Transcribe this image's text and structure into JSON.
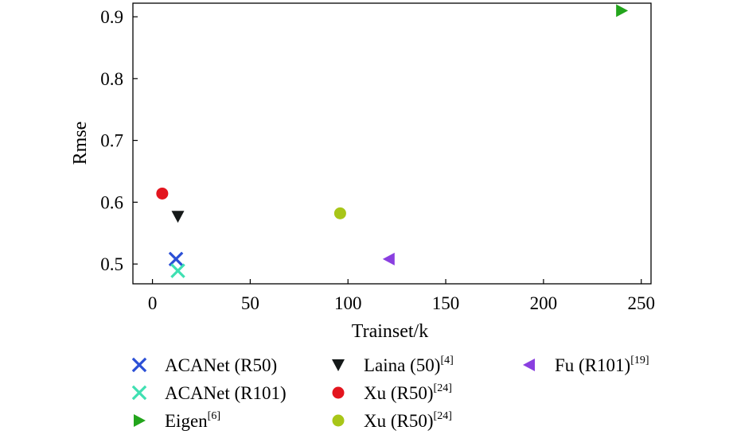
{
  "chart_data": {
    "type": "scatter",
    "title": "",
    "xlabel": "Trainset/k",
    "ylabel": "Rmse",
    "xlim": [
      -10,
      255
    ],
    "ylim": [
      0.468,
      0.922
    ],
    "xticks": [
      0,
      50,
      100,
      150,
      200,
      250
    ],
    "yticks": [
      0.5,
      0.6,
      0.7,
      0.8,
      0.9
    ],
    "xtick_labels": [
      "0",
      "50",
      "100",
      "150",
      "200",
      "250"
    ],
    "ytick_labels": [
      "0.5",
      "0.6",
      "0.7",
      "0.8",
      "0.9"
    ],
    "grid": false,
    "legend_position": "bottom",
    "series": [
      {
        "name": "ACANet (R50)",
        "sup": "",
        "marker": "x",
        "color": "#2b4fd6",
        "x": 12,
        "y": 0.508
      },
      {
        "name": "ACANet (R101)",
        "sup": "",
        "marker": "x",
        "color": "#3fe0b2",
        "x": 13,
        "y": 0.489
      },
      {
        "name": "Eigen",
        "sup": "[6]",
        "marker": "triangle-right",
        "color": "#23a51c",
        "x": 240,
        "y": 0.91
      },
      {
        "name": "Laina (50)",
        "sup": "[4]",
        "marker": "triangle-down",
        "color": "#151919",
        "x": 13,
        "y": 0.577
      },
      {
        "name": "Xu (R50)",
        "sup": "[24]",
        "marker": "circle",
        "color": "#e3151e",
        "x": 5,
        "y": 0.614
      },
      {
        "name": "Xu (R50)",
        "sup": "[24]",
        "marker": "circle",
        "color": "#a8c618",
        "x": 96,
        "y": 0.582
      },
      {
        "name": "Fu (R101)",
        "sup": "[19]",
        "marker": "triangle-left",
        "color": "#8a3fe0",
        "x": 121,
        "y": 0.508
      }
    ]
  }
}
